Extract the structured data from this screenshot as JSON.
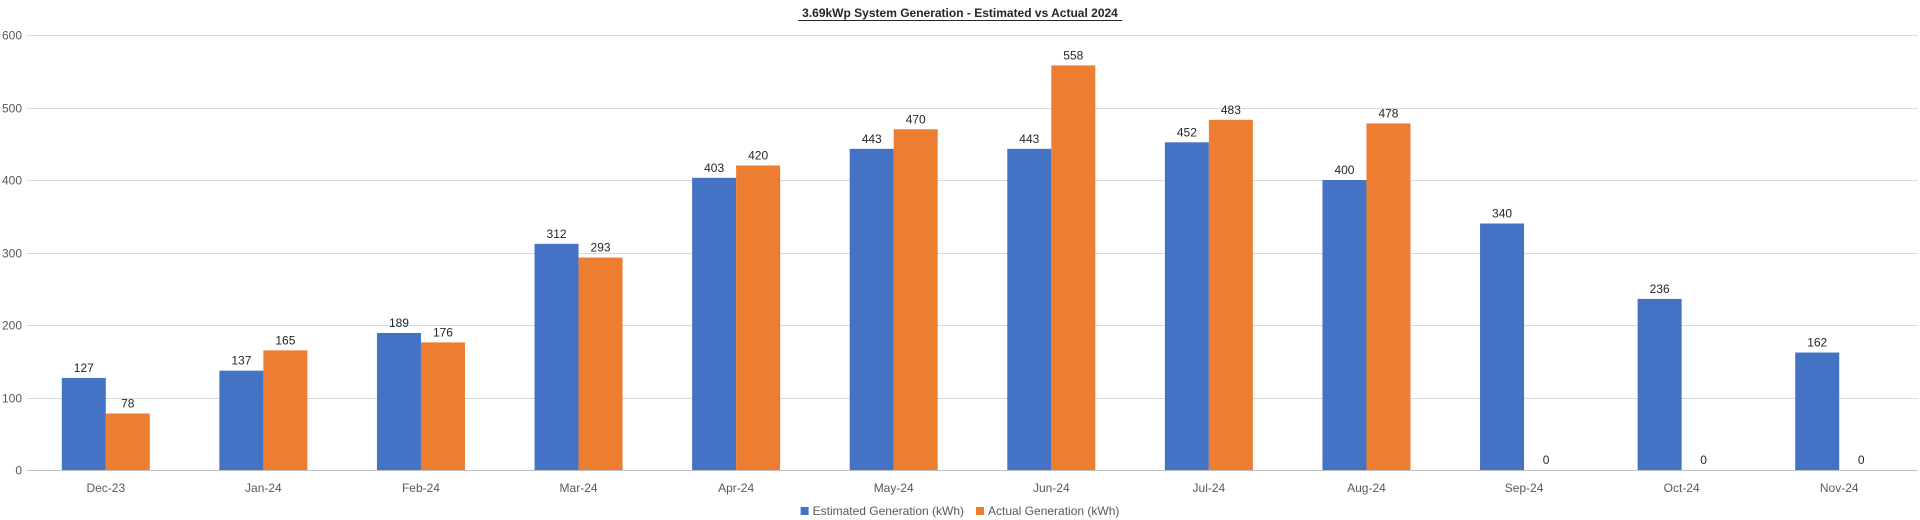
{
  "chart_data": {
    "type": "bar",
    "title": "3.69kWp System Generation - Estimated vs Actual 2024",
    "xlabel": "",
    "ylabel": "",
    "ylim": [
      0,
      600
    ],
    "yticks": [
      0,
      100,
      200,
      300,
      400,
      500,
      600
    ],
    "grid": true,
    "legend_position": "bottom",
    "categories": [
      "Dec-23",
      "Jan-24",
      "Feb-24",
      "Mar-24",
      "Apr-24",
      "May-24",
      "Jun-24",
      "Jul-24",
      "Aug-24",
      "Sep-24",
      "Oct-24",
      "Nov-24"
    ],
    "series": [
      {
        "name": "Estimated Generation (kWh)",
        "color": "#4472C4",
        "values": [
          127,
          137,
          189,
          312,
          403,
          443,
          443,
          452,
          400,
          340,
          236,
          162
        ]
      },
      {
        "name": "Actual Generation (kWh)",
        "color": "#ED7D31",
        "values": [
          78,
          165,
          176,
          293,
          420,
          470,
          558,
          483,
          478,
          0,
          0,
          0
        ]
      }
    ]
  }
}
